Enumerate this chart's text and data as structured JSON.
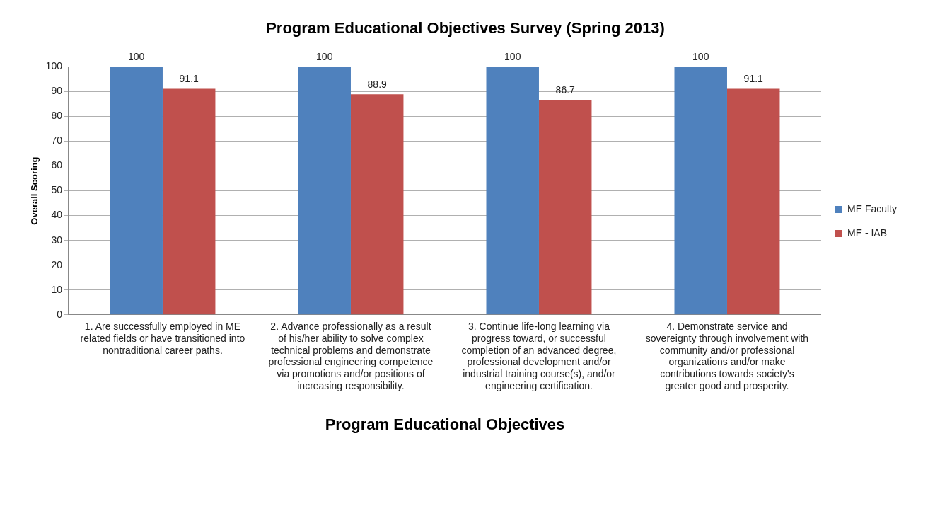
{
  "chart_data": {
    "type": "bar",
    "title": "Program Educational Objectives Survey (Spring 2013)",
    "xlabel": "Program Educational Objectives",
    "ylabel": "Overall Scoring",
    "categories": [
      "1. Are successfully employed in ME related fields or have transitioned into nontraditional career paths.",
      "2. Advance professionally as a result of his/her ability to solve complex technical problems and demonstrate professional engineering competence via promotions and/or positions of increasing responsibility.",
      "3. Continue life-long learning via progress toward, or successful completion of an advanced degree, professional development and/or industrial training course(s), and/or engineering certification.",
      "4. Demonstrate service and sovereignty through involvement with community and/or professional organizations and/or make contributions towards society's greater good and prosperity."
    ],
    "series": [
      {
        "name": "ME Faculty",
        "color": "#4f81bd",
        "values": [
          100,
          100,
          100,
          100
        ]
      },
      {
        "name": "ME - IAB",
        "color": "#c0504d",
        "values": [
          91.1,
          88.9,
          86.7,
          91.1
        ]
      }
    ],
    "ylim": [
      0,
      100
    ],
    "yticks": [
      0,
      10,
      20,
      30,
      40,
      50,
      60,
      70,
      80,
      90,
      100
    ],
    "grid": "y",
    "legend": "right",
    "data_labels": true
  }
}
